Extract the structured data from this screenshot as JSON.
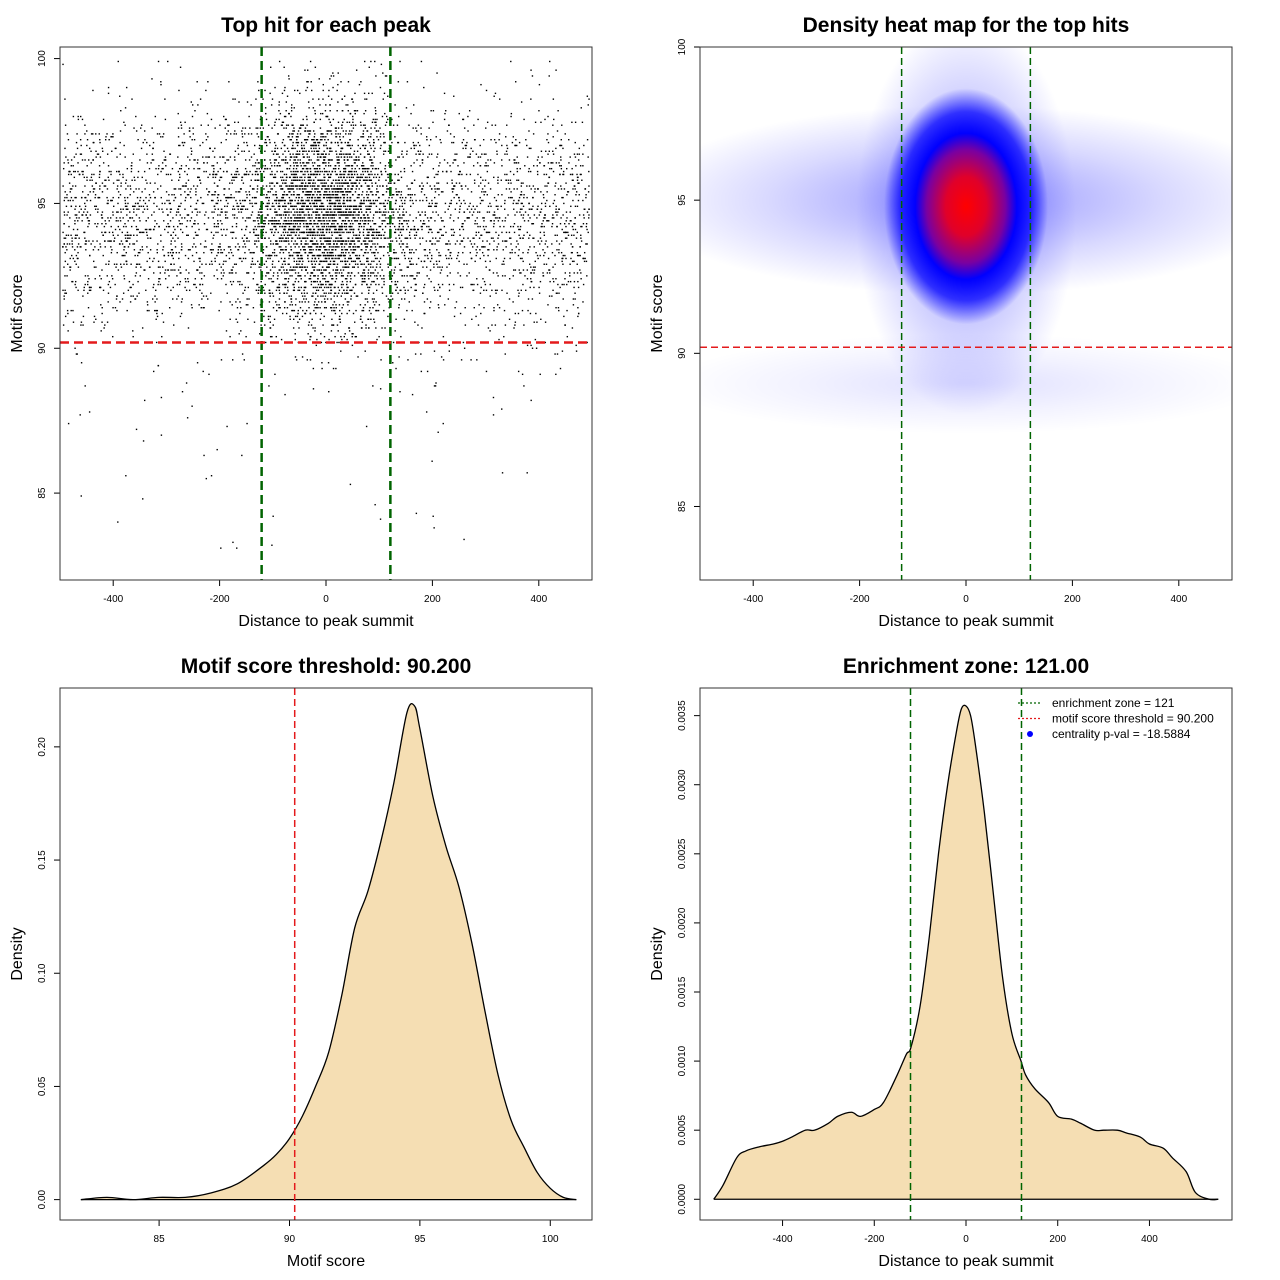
{
  "chart_data": [
    {
      "type": "scatter",
      "title": "Top hit for each peak",
      "xlabel": "Distance to peak summit",
      "ylabel": "Motif score",
      "xlim": [
        -500,
        500
      ],
      "ylim": [
        82,
        100.4
      ],
      "xticks": [
        -400,
        -200,
        0,
        200,
        400
      ],
      "yticks": [
        85,
        90,
        95,
        100
      ],
      "point_color": "#000000",
      "points_summary": "≈ 6000 points; dense core around x in [-120,120], y in [92,97]",
      "hlines": [
        {
          "y": 90.2,
          "color": "#e41a1c",
          "style": "dashed"
        }
      ],
      "vlines": [
        {
          "x": -121,
          "color": "#006400",
          "style": "dashed"
        },
        {
          "x": 121,
          "color": "#006400",
          "style": "dashed"
        }
      ]
    },
    {
      "type": "heatmap",
      "title": "Density heat map for the top hits",
      "xlabel": "Distance to peak summit",
      "ylabel": "Motif score",
      "xlim": [
        -500,
        500
      ],
      "ylim": [
        82.6,
        100
      ],
      "xticks": [
        -400,
        -200,
        0,
        200,
        400
      ],
      "yticks": [
        85,
        90,
        95,
        100
      ],
      "colors": {
        "low": "#ffffff",
        "mid": "#0000ff",
        "high": "#ff0000"
      },
      "peak": {
        "x": 0,
        "y": 94.8
      },
      "hlines": [
        {
          "y": 90.2,
          "color": "#e41a1c",
          "style": "dashed"
        }
      ],
      "vlines": [
        {
          "x": -121,
          "color": "#006400",
          "style": "dashed"
        },
        {
          "x": 121,
          "color": "#006400",
          "style": "dashed"
        }
      ]
    },
    {
      "type": "area",
      "title": "Motif score threshold: 90.200",
      "xlabel": "Motif score",
      "ylabel": "Density",
      "xlim": [
        81.2,
        101.6
      ],
      "ylim": [
        -0.009,
        0.226
      ],
      "xticks": [
        85,
        90,
        95,
        100
      ],
      "yticks": [
        0.0,
        0.05,
        0.1,
        0.15,
        0.2
      ],
      "ytick_labels": [
        "0.00",
        "0.05",
        "0.10",
        "0.15",
        "0.20"
      ],
      "fill": "#f5deb3",
      "x": [
        82,
        83,
        84,
        85,
        86,
        87,
        88,
        89,
        89.5,
        90,
        90.5,
        91,
        91.5,
        92,
        92.5,
        93,
        93.5,
        94,
        94.5,
        94.8,
        95,
        95.5,
        96,
        96.5,
        97,
        97.5,
        98,
        98.5,
        99,
        99.5,
        100,
        100.5,
        101
      ],
      "y": [
        0.0,
        0.001,
        0.0,
        0.001,
        0.001,
        0.003,
        0.007,
        0.015,
        0.02,
        0.027,
        0.037,
        0.05,
        0.065,
        0.09,
        0.12,
        0.136,
        0.158,
        0.184,
        0.215,
        0.218,
        0.208,
        0.178,
        0.156,
        0.138,
        0.113,
        0.083,
        0.055,
        0.035,
        0.023,
        0.012,
        0.005,
        0.001,
        0.0
      ],
      "vlines": [
        {
          "x": 90.2,
          "color": "#e41a1c",
          "style": "dashed"
        }
      ]
    },
    {
      "type": "area",
      "title": "Enrichment zone: 121.00",
      "xlabel": "Distance to peak summit",
      "ylabel": "Density",
      "xlim": [
        -580,
        580
      ],
      "ylim": [
        -0.00015,
        0.0037
      ],
      "xticks": [
        -400,
        -200,
        0,
        200,
        400
      ],
      "yticks": [
        0.0,
        0.0005,
        0.001,
        0.0015,
        0.002,
        0.0025,
        0.003,
        0.0035
      ],
      "ytick_labels": [
        "0.0000",
        "0.0005",
        "0.0010",
        "0.0015",
        "0.0020",
        "0.0025",
        "0.0030",
        "0.0035"
      ],
      "fill": "#f5deb3",
      "x": [
        -550,
        -530,
        -500,
        -480,
        -450,
        -420,
        -400,
        -380,
        -350,
        -330,
        -300,
        -280,
        -250,
        -230,
        -200,
        -180,
        -150,
        -130,
        -120,
        -100,
        -80,
        -60,
        -40,
        -20,
        -10,
        0,
        10,
        20,
        40,
        60,
        80,
        100,
        120,
        130,
        150,
        180,
        200,
        230,
        250,
        280,
        300,
        330,
        350,
        380,
        400,
        430,
        450,
        480,
        500,
        530,
        550
      ],
      "y": [
        0.0,
        0.0001,
        0.0003,
        0.00035,
        0.00038,
        0.0004,
        0.00042,
        0.00045,
        0.0005,
        0.0005,
        0.00055,
        0.0006,
        0.00063,
        0.0006,
        0.00065,
        0.0007,
        0.0009,
        0.00105,
        0.0011,
        0.0014,
        0.0019,
        0.0025,
        0.003,
        0.0034,
        0.00355,
        0.00357,
        0.0035,
        0.0033,
        0.0028,
        0.0022,
        0.0016,
        0.0012,
        0.001,
        0.0009,
        0.0008,
        0.0007,
        0.0006,
        0.00058,
        0.00055,
        0.0005,
        0.0005,
        0.0005,
        0.00048,
        0.00045,
        0.0004,
        0.00037,
        0.0003,
        0.0002,
        5e-05,
        0.0,
        0.0
      ],
      "vlines": [
        {
          "x": -121,
          "color": "#006400",
          "style": "dashed"
        },
        {
          "x": 121,
          "color": "#006400",
          "style": "dashed"
        }
      ],
      "legend": {
        "position": "top-right",
        "entries": [
          {
            "label": "enrichment zone = 121",
            "color": "#006400",
            "kind": "line"
          },
          {
            "label": "motif score threshold = 90.200",
            "color": "#e41a1c",
            "kind": "line"
          },
          {
            "label": "centrality p-val = -18.5884",
            "color": "#0000ff",
            "kind": "point"
          }
        ]
      }
    }
  ]
}
